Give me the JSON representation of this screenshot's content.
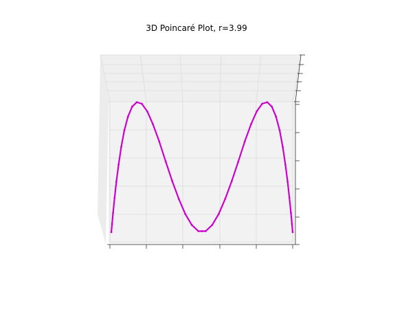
{
  "chart_data": {
    "type": "scatter",
    "projection": "3d",
    "title": "3D Poincaré Plot, r=3.99",
    "xlabel": "",
    "ylabel": "",
    "zlabel": "",
    "grid": true,
    "axis_tick_labels": "none",
    "x_range": [
      0,
      1
    ],
    "y_range": [
      0,
      1
    ],
    "z_range": [
      0,
      1
    ],
    "series": [
      {
        "color": "#cc00cc",
        "marker": "dot",
        "formula": "z = 3.99 * y * (1 - y), y = 3.99 * x * (1 - x)",
        "x": [
          0.0,
          0.004,
          0.01,
          0.018,
          0.028,
          0.04,
          0.055,
          0.072,
          0.092,
          0.115,
          0.14,
          0.168,
          0.198,
          0.23,
          0.264,
          0.3,
          0.336,
          0.372,
          0.408,
          0.444,
          0.48,
          0.5,
          0.52,
          0.556,
          0.592,
          0.628,
          0.664,
          0.7,
          0.736,
          0.77,
          0.802,
          0.832,
          0.86,
          0.885,
          0.908,
          0.928,
          0.945,
          0.96,
          0.972,
          0.982,
          0.99,
          0.996,
          1.0
        ],
        "y": [
          0.0,
          0.016,
          0.039,
          0.071,
          0.109,
          0.153,
          0.207,
          0.267,
          0.333,
          0.406,
          0.48,
          0.558,
          0.634,
          0.707,
          0.775,
          0.838,
          0.89,
          0.931,
          0.964,
          0.986,
          0.998,
          0.998,
          0.998,
          0.986,
          0.964,
          0.931,
          0.89,
          0.838,
          0.775,
          0.707,
          0.634,
          0.558,
          0.48,
          0.406,
          0.333,
          0.267,
          0.207,
          0.153,
          0.109,
          0.071,
          0.039,
          0.016,
          0.0
        ],
        "z": [
          0.0,
          0.063,
          0.15,
          0.263,
          0.388,
          0.517,
          0.655,
          0.781,
          0.886,
          0.962,
          0.996,
          0.984,
          0.926,
          0.826,
          0.696,
          0.541,
          0.391,
          0.256,
          0.139,
          0.055,
          0.008,
          0.008,
          0.008,
          0.055,
          0.139,
          0.256,
          0.391,
          0.541,
          0.696,
          0.826,
          0.926,
          0.984,
          0.996,
          0.962,
          0.886,
          0.781,
          0.655,
          0.517,
          0.388,
          0.263,
          0.15,
          0.063,
          0.0
        ]
      }
    ]
  }
}
